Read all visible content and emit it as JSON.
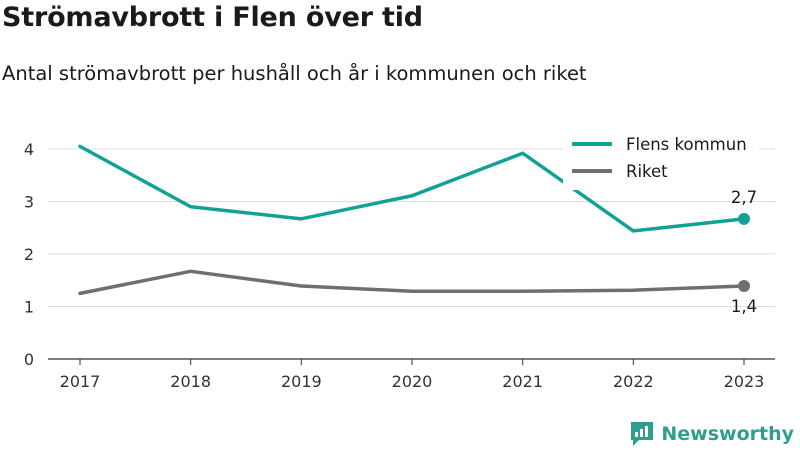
{
  "header": {
    "title": "Strömavbrott i Flen över tid",
    "subtitle": "Antal strömavbrott per hushåll och år i kommunen och riket"
  },
  "brand": {
    "name": "Newsworthy",
    "icon": "newsworthy-logo-icon"
  },
  "colors": {
    "flen": "#12a195",
    "riket": "#6e6e73",
    "grid": "#dcdcdc",
    "brand": "#2f9e8f"
  },
  "chart_data": {
    "type": "line",
    "x": [
      "2017",
      "2018",
      "2019",
      "2020",
      "2021",
      "2022",
      "2023"
    ],
    "yticks": [
      "0",
      "1",
      "2",
      "3",
      "4"
    ],
    "ylim": [
      0,
      4.3
    ],
    "grid": true,
    "legend_position": "top-right",
    "series": [
      {
        "name": "Flens kommun",
        "values": [
          4.05,
          2.9,
          2.67,
          3.11,
          3.92,
          2.44,
          2.67
        ],
        "end_label": "2,7",
        "color": "#12a195"
      },
      {
        "name": "Riket",
        "values": [
          1.25,
          1.67,
          1.39,
          1.29,
          1.29,
          1.31,
          1.39
        ],
        "end_label": "1,4",
        "color": "#6e6e73"
      }
    ]
  }
}
